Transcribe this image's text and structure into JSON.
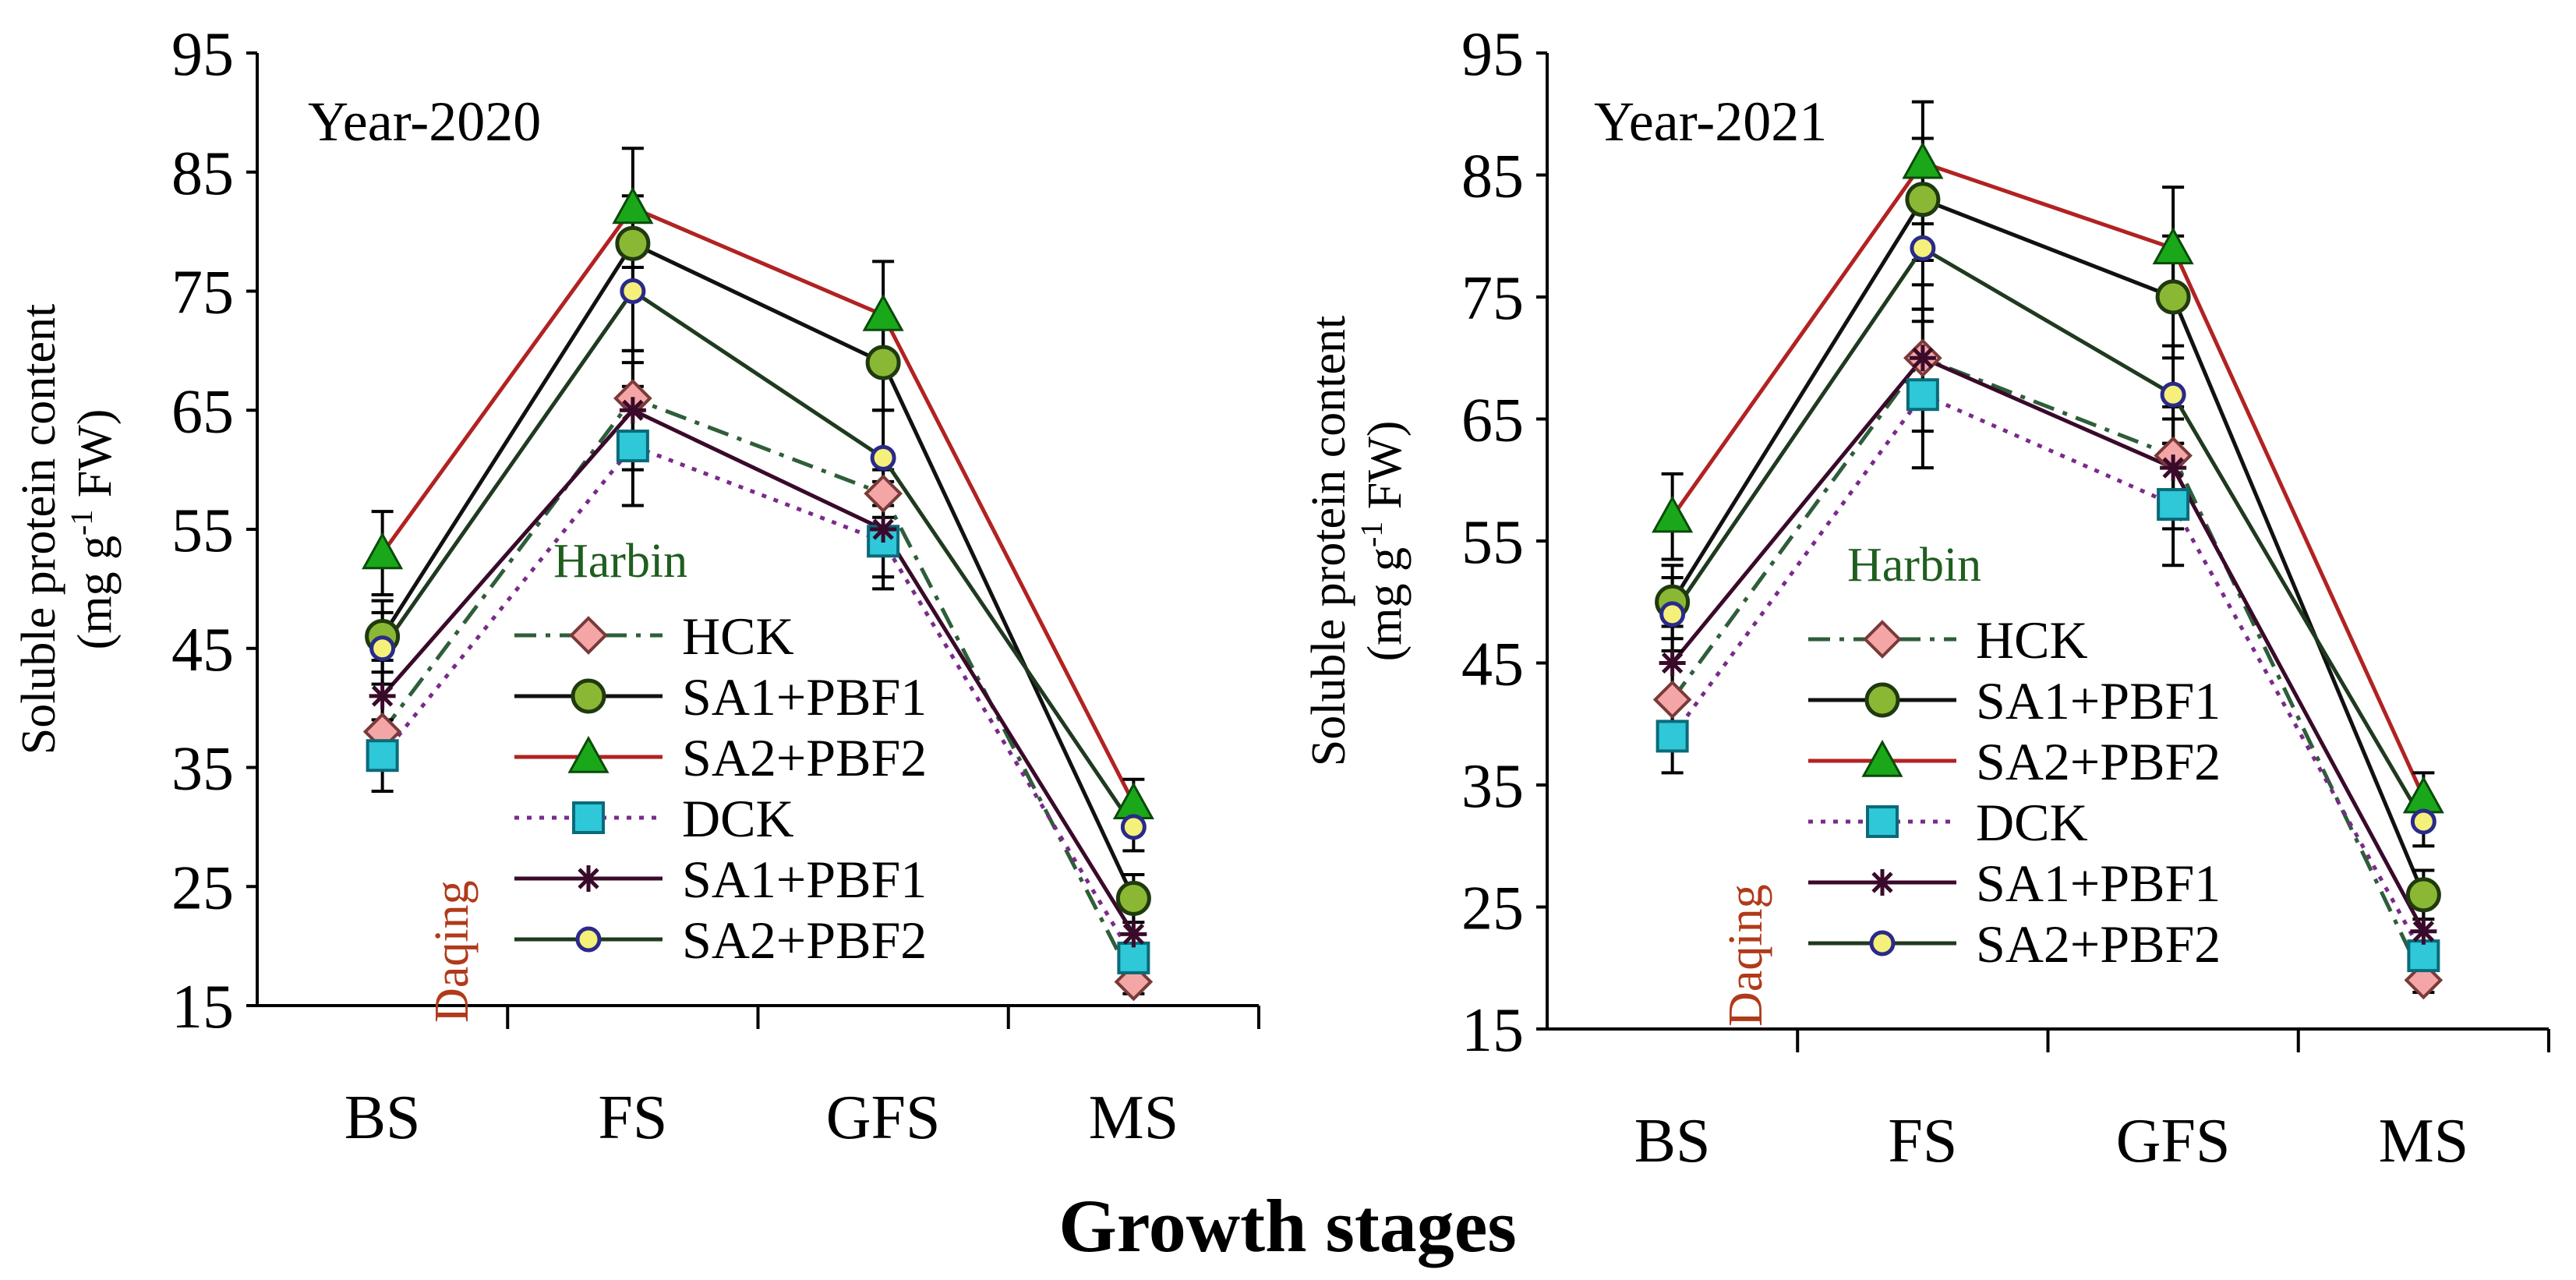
{
  "figure": {
    "xlabel_common": "Growth stages"
  },
  "legend": {
    "group_harbin": "Harbin",
    "group_daqing": "Daqing",
    "entries": [
      {
        "label": "HCK",
        "color": "#2e5e3a",
        "dash": "dashdot",
        "marker": "diamond",
        "fill": "#f4a6a6",
        "markerStroke": "#7a3a3a"
      },
      {
        "label": "SA1+PBF1",
        "color": "#111111",
        "dash": "solid",
        "marker": "circle",
        "fill": "#8ab834",
        "markerStroke": "#1f3a0f"
      },
      {
        "label": "SA2+PBF2",
        "color": "#b22222",
        "dash": "solid",
        "marker": "triangle",
        "fill": "#1aa81a",
        "markerStroke": "#0a4a0a"
      },
      {
        "label": "DCK",
        "color": "#7a2a8a",
        "dash": "dotted",
        "marker": "square",
        "fill": "#2ec8d8",
        "markerStroke": "#0a6a7a"
      },
      {
        "label": "SA1+PBF1",
        "color": "#3a0a2a",
        "dash": "solid",
        "marker": "star",
        "fill": "#3a0a2a",
        "markerStroke": "#3a0a2a"
      },
      {
        "label": "SA2+PBF2",
        "color": "#1f3a1f",
        "dash": "solid",
        "marker": "smallcircle",
        "fill": "#f5f07a",
        "markerStroke": "#2a2a8a"
      }
    ]
  },
  "chart_data": [
    {
      "type": "line",
      "title": "Year-2020",
      "categories": [
        "BS",
        "FS",
        "GFS",
        "MS"
      ],
      "ylabel": "Soluble protein content (mg g-1 FW)",
      "ylabel_line1": "Soluble protein content",
      "ylabel_line2_pre": "(mg g",
      "ylabel_line2_sup": "-1",
      "ylabel_line2_post": " FW)",
      "ylim": [
        15,
        95
      ],
      "yticks": [
        15,
        25,
        35,
        45,
        55,
        65,
        75,
        85,
        95
      ],
      "series": [
        {
          "name": "HCK (Harbin)",
          "values": [
            38,
            66,
            58,
            17
          ],
          "err": [
            3,
            3,
            2,
            1
          ]
        },
        {
          "name": "SA1+PBF1 (Harbin)",
          "values": [
            46,
            79,
            69,
            24
          ],
          "err": [
            3,
            4,
            4,
            2
          ]
        },
        {
          "name": "SA2+PBF2 (Harbin)",
          "values": [
            53,
            82,
            73,
            32
          ],
          "err": [
            3.5,
            5,
            4.5,
            2
          ]
        },
        {
          "name": "DCK (Daqing)",
          "values": [
            36,
            62,
            54,
            19
          ],
          "err": [
            3,
            5,
            4,
            2
          ]
        },
        {
          "name": "SA1+PBF1 (Daqing)",
          "values": [
            41,
            65,
            55,
            21
          ],
          "err": [
            3,
            5,
            4,
            2
          ]
        },
        {
          "name": "SA2+PBF2 (Daqing)",
          "values": [
            45,
            75,
            61,
            30
          ],
          "err": [
            3,
            5,
            4,
            2
          ]
        }
      ]
    },
    {
      "type": "line",
      "title": "Year-2021",
      "categories": [
        "BS",
        "FS",
        "GFS",
        "MS"
      ],
      "ylabel": "Soluble protein content (mg g-1 FW)",
      "ylabel_line1": "Soluble protein content",
      "ylabel_line2_pre": "(mg g",
      "ylabel_line2_sup": "-1",
      "ylabel_line2_post": " FW)",
      "ylim": [
        15,
        95
      ],
      "yticks": [
        15,
        25,
        35,
        45,
        55,
        65,
        75,
        85,
        95
      ],
      "series": [
        {
          "name": "HCK (Harbin)",
          "values": [
            42,
            70,
            62,
            19
          ],
          "err": [
            3,
            4,
            3,
            1
          ]
        },
        {
          "name": "SA1+PBF1 (Harbin)",
          "values": [
            50,
            83,
            75,
            26
          ],
          "err": [
            3,
            5,
            5,
            2
          ]
        },
        {
          "name": "SA2+PBF2 (Harbin)",
          "values": [
            57,
            86,
            79,
            34
          ],
          "err": [
            3.5,
            5,
            5,
            2
          ]
        },
        {
          "name": "DCK (Daqing)",
          "values": [
            39,
            67,
            58,
            21
          ],
          "err": [
            3,
            6,
            5,
            2
          ]
        },
        {
          "name": "SA1+PBF1 (Daqing)",
          "values": [
            45,
            70,
            61,
            23
          ],
          "err": [
            3,
            6,
            5,
            2
          ]
        },
        {
          "name": "SA2+PBF2 (Daqing)",
          "values": [
            49,
            79,
            67,
            32
          ],
          "err": [
            3,
            5,
            4,
            2
          ]
        }
      ]
    }
  ]
}
